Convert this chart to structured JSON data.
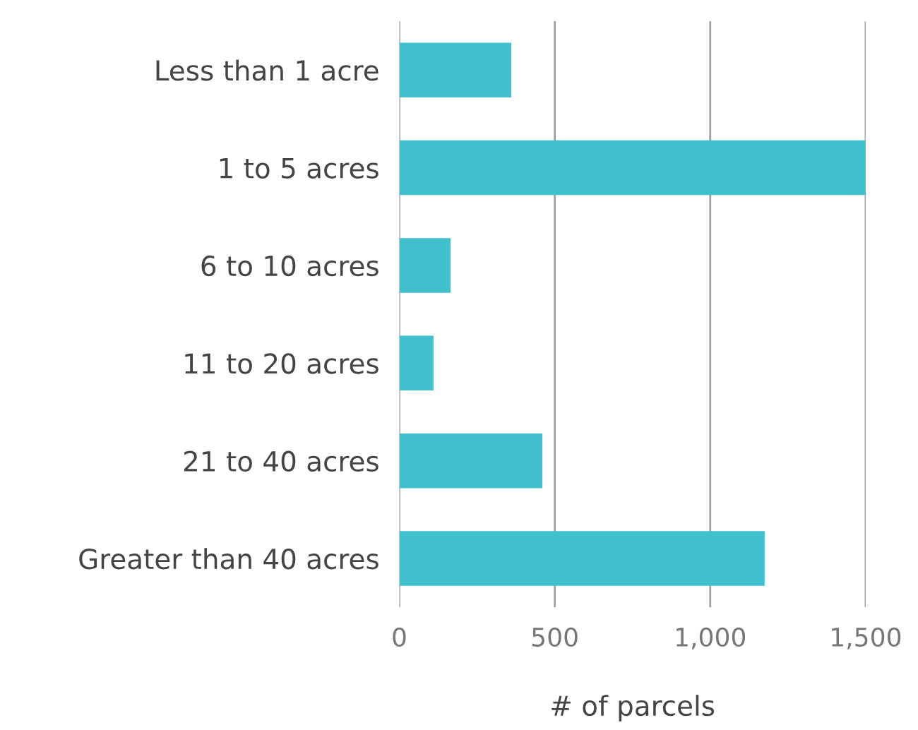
{
  "chart_data": {
    "type": "bar",
    "orientation": "horizontal",
    "categories": [
      "Less than 1 acre",
      "1 to 5 acres",
      "6 to 10 acres",
      "11 to 20 acres",
      "21 to 40 acres",
      "Greater than 40 acres"
    ],
    "values": [
      360,
      1500,
      165,
      110,
      460,
      1175
    ],
    "color": "#40c1cd",
    "xlabel": "# of parcels",
    "xlim": [
      0,
      1500
    ],
    "xticks": [
      0,
      500,
      {
        "value": 1000,
        "label": "1,000"
      },
      {
        "value": 1500,
        "label": "1,500"
      }
    ],
    "grid": "x"
  }
}
